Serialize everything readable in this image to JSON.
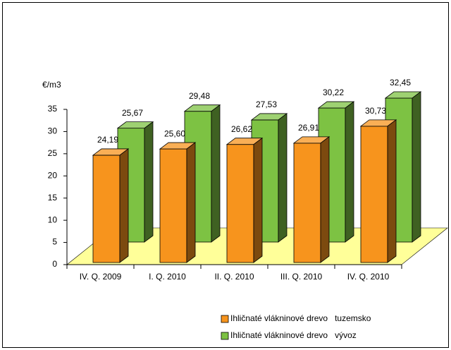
{
  "chart_data": {
    "type": "bar3d",
    "y_label": "€/m3",
    "categories": [
      "IV. Q. 2009",
      "I. Q. 2010",
      "II. Q. 2010",
      "III. Q. 2010",
      "IV. Q. 2010"
    ],
    "series": [
      {
        "name": "Ihličnaté vlákninové drevo   tuzemsko",
        "color": "#f7941d",
        "values": [
          24.19,
          25.6,
          26.62,
          26.91,
          30.73
        ],
        "value_labels": [
          "24,19",
          "25,60",
          "26,62",
          "26,91",
          "30,73"
        ]
      },
      {
        "name": "Ihličnaté vlákninové drevo   vývoz",
        "color": "#7dc243",
        "values": [
          25.67,
          29.48,
          27.53,
          30.22,
          32.45
        ],
        "value_labels": [
          "25,67",
          "29,48",
          "27,53",
          "30,22",
          "32,45"
        ]
      }
    ],
    "ylim": [
      0,
      35
    ],
    "yticks": [
      0,
      5,
      10,
      15,
      20,
      25,
      30,
      35
    ]
  }
}
